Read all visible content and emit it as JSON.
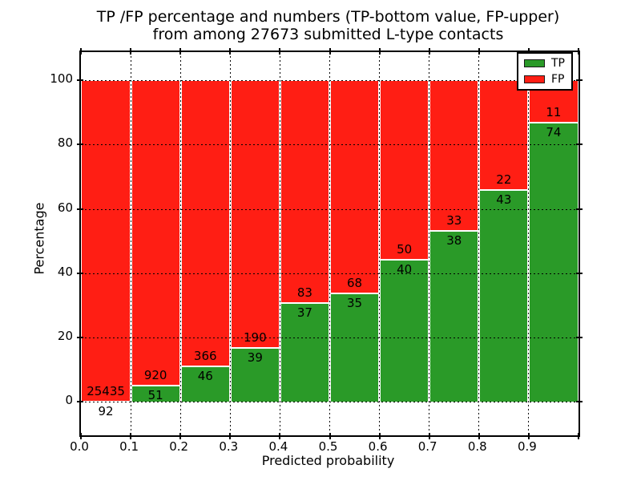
{
  "title": {
    "line1": "TP /FP percentage and numbers (TP-bottom value, FP-upper)",
    "line2": "from among 27673 submitted L-type contacts"
  },
  "axes": {
    "xlabel": "Predicted probability",
    "ylabel": "Percentage",
    "xtick_labels": [
      "0.0",
      "0.1",
      "0.2",
      "0.3",
      "0.4",
      "0.5",
      "0.6",
      "0.7",
      "0.8",
      "0.9"
    ],
    "ytick_values": [
      0,
      20,
      40,
      60,
      80,
      100
    ],
    "ylim": [
      -11,
      109
    ],
    "xlim": [
      0.0,
      1.0
    ],
    "grid_style": "dotted"
  },
  "legend": {
    "position": "upper right",
    "entries": [
      {
        "label": "TP",
        "color": "#2a9a28"
      },
      {
        "label": "FP",
        "color": "#ff1e14"
      }
    ]
  },
  "colors": {
    "tp_green": "#2a9a28",
    "fp_red": "#ff1e14",
    "bar_edge": "#ffffff",
    "grid": "#000000",
    "background": "#ffffff"
  },
  "chart_data": {
    "type": "bar",
    "stacked": true,
    "normalized_to_percent": true,
    "title": "TP /FP percentage and numbers (TP-bottom value, FP-upper) from among 27673 submitted L-type contacts",
    "xlabel": "Predicted probability",
    "ylabel": "Percentage",
    "total_submitted": 27673,
    "bin_edges": [
      0.0,
      0.1,
      0.2,
      0.3,
      0.4,
      0.5,
      0.6,
      0.7,
      0.8,
      0.9,
      1.0
    ],
    "categories": [
      "0.0-0.1",
      "0.1-0.2",
      "0.2-0.3",
      "0.3-0.4",
      "0.4-0.5",
      "0.5-0.6",
      "0.6-0.7",
      "0.7-0.8",
      "0.8-0.9",
      "0.9-1.0"
    ],
    "series": [
      {
        "name": "TP",
        "color": "#2a9a28",
        "counts": [
          92,
          51,
          46,
          39,
          37,
          35,
          40,
          38,
          43,
          74
        ]
      },
      {
        "name": "FP",
        "color": "#ff1e14",
        "counts": [
          25435,
          920,
          366,
          190,
          83,
          68,
          50,
          33,
          22,
          11
        ]
      }
    ],
    "tp_percent_of_bin": [
      0.36,
      5.25,
      11.17,
      17.03,
      30.83,
      33.98,
      44.44,
      53.52,
      66.15,
      87.06
    ],
    "ylim": [
      -11,
      109
    ],
    "yticks": [
      0,
      20,
      40,
      60,
      80,
      100
    ],
    "grid": "dotted",
    "legend_position": "upper right"
  }
}
